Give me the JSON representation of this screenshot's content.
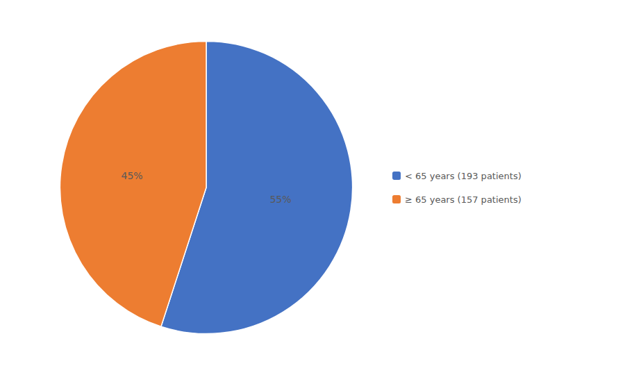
{
  "chart_data": {
    "type": "pie",
    "categories": [
      "< 65 years (193 patients)",
      "≥ 65 years (157 patients)"
    ],
    "values": [
      55,
      45
    ],
    "value_labels": [
      "55%",
      "45%"
    ],
    "colors": [
      "#4472C4",
      "#ED7D31"
    ],
    "data_labels": true,
    "legend": "right"
  }
}
